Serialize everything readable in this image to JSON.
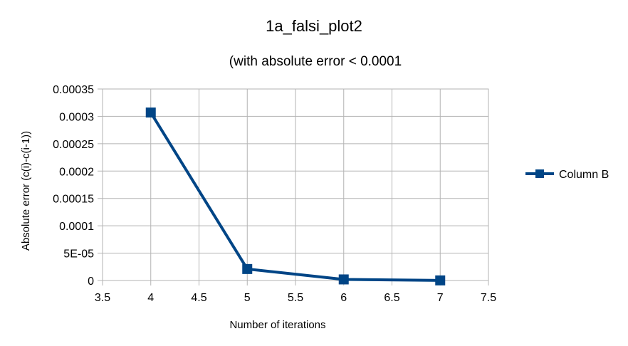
{
  "chart_data": {
    "type": "line",
    "title": "1a_falsi_plot2",
    "subtitle": "(with absolute error < 0.0001",
    "xlabel": "Number of iterations",
    "ylabel": "Absolute error (c(i)-c(i-1))",
    "xlim": [
      3.5,
      7.5
    ],
    "ylim": [
      0,
      0.00035
    ],
    "xticks": [
      "3.5",
      "4",
      "4.5",
      "5",
      "5.5",
      "6",
      "6.5",
      "7",
      "7.5"
    ],
    "yticks": [
      "0",
      "5E-05",
      "0.0001",
      "0.00015",
      "0.0002",
      "0.00025",
      "0.0003",
      "0.00035"
    ],
    "grid": true,
    "legend_position": "right",
    "series": [
      {
        "name": "Column B",
        "color": "#004586",
        "x": [
          4,
          5,
          6,
          7
        ],
        "y": [
          0.000307,
          2.1e-05,
          2e-06,
          2e-07
        ]
      }
    ]
  }
}
